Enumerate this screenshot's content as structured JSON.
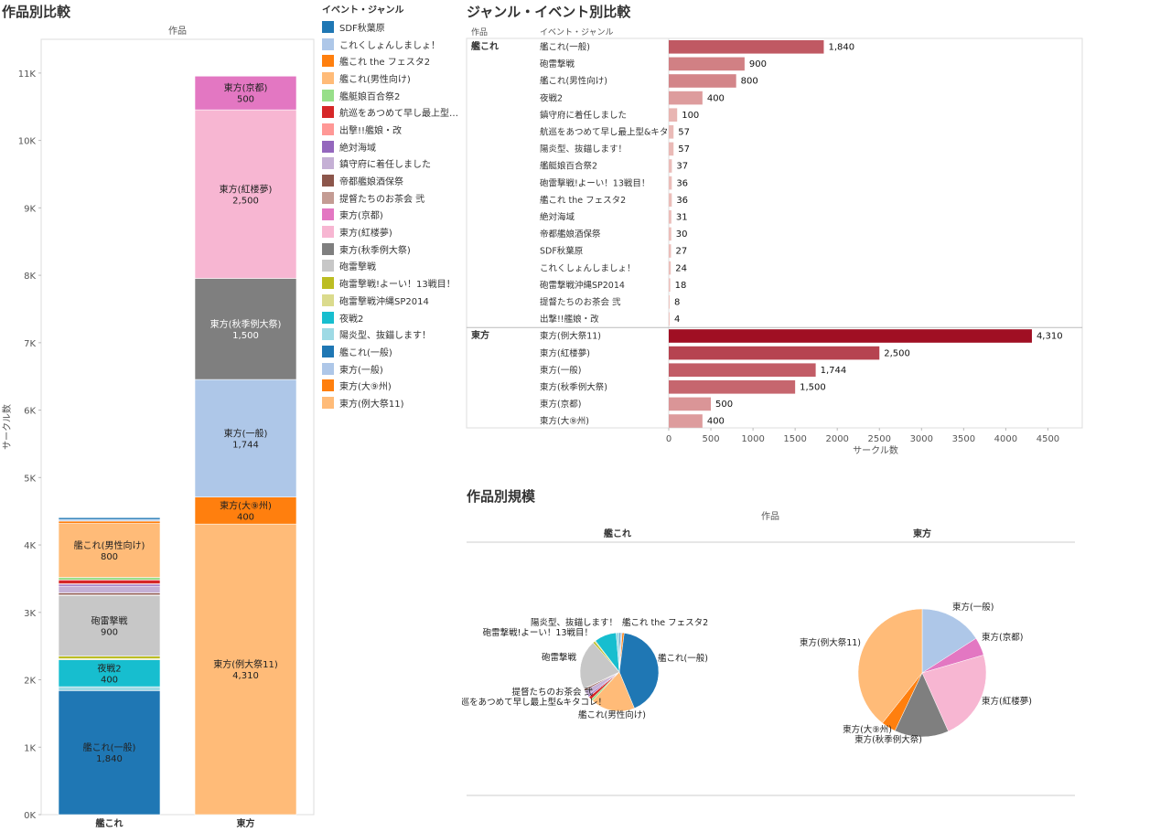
{
  "titles": {
    "stacked": "作品別比較",
    "bars": "ジャンル・イベント別比較",
    "pies": "作品別規模"
  },
  "legend": {
    "title": "イベント・ジャンル",
    "items": [
      {
        "label": "SDF秋葉原",
        "color": "#1f77b4"
      },
      {
        "label": "これくしょんしましょ！",
        "color": "#aec7e8"
      },
      {
        "label": "艦これ the フェスタ2",
        "color": "#ff7f0e"
      },
      {
        "label": "艦これ(男性向け)",
        "color": "#ffbb78"
      },
      {
        "label": "艦艇娘百合祭2",
        "color": "#98df8a"
      },
      {
        "label": "航巡をあつめて早し最上型&キ...",
        "color": "#d62728"
      },
      {
        "label": "出撃!!艦娘・改",
        "color": "#ff9896"
      },
      {
        "label": "絶対海域",
        "color": "#9467bd"
      },
      {
        "label": "鎮守府に着任しました",
        "color": "#c5b0d5"
      },
      {
        "label": "帝都艦娘酒保祭",
        "color": "#8c564b"
      },
      {
        "label": "提督たちのお茶会 弐",
        "color": "#c49c94"
      },
      {
        "label": "東方(京都)",
        "color": "#e377c2"
      },
      {
        "label": "東方(紅楼夢)",
        "color": "#f7b6d2"
      },
      {
        "label": "東方(秋季例大祭)",
        "color": "#7f7f7f"
      },
      {
        "label": "砲雷撃戦",
        "color": "#c7c7c7"
      },
      {
        "label": "砲雷撃戦!よーい！13戦目！",
        "color": "#bcbd22"
      },
      {
        "label": "砲雷撃戦沖縄SP2014",
        "color": "#dbdb8d"
      },
      {
        "label": "夜戦2",
        "color": "#17becf"
      },
      {
        "label": "陽炎型、抜錨します！",
        "color": "#9edae5"
      },
      {
        "label": "艦これ(一般)",
        "color": "#1f77b4"
      },
      {
        "label": "東方(一般)",
        "color": "#aec7e8"
      },
      {
        "label": "東方(大⑨州)",
        "color": "#ff7f0e"
      },
      {
        "label": "東方(例大祭11)",
        "color": "#ffbb78"
      }
    ]
  },
  "chart_data": [
    {
      "type": "bar",
      "stacked": true,
      "header": "作品",
      "ylabel": "サークル数",
      "ylim": [
        0,
        11500
      ],
      "yticks": [
        "0K",
        "1K",
        "2K",
        "3K",
        "4K",
        "5K",
        "6K",
        "7K",
        "8K",
        "9K",
        "10K",
        "11K"
      ],
      "categories": [
        "艦これ",
        "東方"
      ],
      "stacks": [
        [
          {
            "name": "艦これ(一般)",
            "value": 1840,
            "color": "#1f77b4",
            "label": "艦これ(一般)",
            "value_label": "1,840"
          },
          {
            "name": "陽炎型、抜錨します！",
            "value": 57,
            "color": "#9edae5"
          },
          {
            "name": "夜戦2",
            "value": 400,
            "color": "#17becf",
            "label": "夜戦2",
            "value_label": "400"
          },
          {
            "name": "砲雷撃戦沖縄SP2014",
            "value": 18,
            "color": "#dbdb8d"
          },
          {
            "name": "砲雷撃戦!よーい！13戦目！",
            "value": 36,
            "color": "#bcbd22"
          },
          {
            "name": "砲雷撃戦",
            "value": 900,
            "color": "#c7c7c7",
            "label": "砲雷撃戦",
            "value_label": "900"
          },
          {
            "name": "提督たちのお茶会 弐",
            "value": 8,
            "color": "#c49c94"
          },
          {
            "name": "帝都艦娘酒保祭",
            "value": 30,
            "color": "#8c564b"
          },
          {
            "name": "鎮守府に着任しました",
            "value": 100,
            "color": "#c5b0d5"
          },
          {
            "name": "絶対海域",
            "value": 31,
            "color": "#9467bd"
          },
          {
            "name": "出撃!!艦娘・改",
            "value": 4,
            "color": "#ff9896"
          },
          {
            "name": "航巡をあつめて早し最上型&キタコレ！",
            "value": 57,
            "color": "#d62728"
          },
          {
            "name": "艦艇娘百合祭2",
            "value": 37,
            "color": "#98df8a"
          },
          {
            "name": "艦これ(男性向け)",
            "value": 800,
            "color": "#ffbb78",
            "label": "艦これ(男性向け)",
            "value_label": "800"
          },
          {
            "name": "艦これ the フェスタ2",
            "value": 36,
            "color": "#ff7f0e"
          },
          {
            "name": "これくしょんしましょ！",
            "value": 24,
            "color": "#aec7e8"
          },
          {
            "name": "SDF秋葉原",
            "value": 27,
            "color": "#1f77b4"
          }
        ],
        [
          {
            "name": "東方(例大祭11)",
            "value": 4310,
            "color": "#ffbb78",
            "label": "東方(例大祭11)",
            "value_label": "4,310"
          },
          {
            "name": "東方(大⑨州)",
            "value": 400,
            "color": "#ff7f0e",
            "label": "東方(大⑨州)",
            "value_label": "400"
          },
          {
            "name": "東方(一般)",
            "value": 1744,
            "color": "#aec7e8",
            "label": "東方(一般)",
            "value_label": "1,744"
          },
          {
            "name": "東方(秋季例大祭)",
            "value": 1500,
            "color": "#7f7f7f",
            "label": "東方(秋季例大祭)",
            "value_label": "1,500",
            "light_text": true
          },
          {
            "name": "東方(紅楼夢)",
            "value": 2500,
            "color": "#f7b6d2",
            "label": "東方(紅楼夢)",
            "value_label": "2,500"
          },
          {
            "name": "東方(京都)",
            "value": 500,
            "color": "#e377c2",
            "label": "東方(京都)",
            "value_label": "500"
          }
        ]
      ]
    },
    {
      "type": "bar",
      "orientation": "horizontal",
      "col_headers": [
        "作品",
        "イベント・ジャンル"
      ],
      "xlabel": "サークル数",
      "xlim": [
        0,
        4700
      ],
      "xticks": [
        0,
        500,
        1000,
        1500,
        2000,
        2500,
        3000,
        3500,
        4000,
        4500
      ],
      "groups": [
        {
          "name": "艦これ",
          "rows": [
            {
              "label": "艦これ(一般)",
              "value": 1840,
              "value_label": "1,840"
            },
            {
              "label": "砲雷撃戦",
              "value": 900,
              "value_label": "900"
            },
            {
              "label": "艦これ(男性向け)",
              "value": 800,
              "value_label": "800"
            },
            {
              "label": "夜戦2",
              "value": 400,
              "value_label": "400"
            },
            {
              "label": "鎮守府に着任しました",
              "value": 100,
              "value_label": "100"
            },
            {
              "label": "航巡をあつめて早し最上型&キタ..",
              "value": 57,
              "value_label": "57"
            },
            {
              "label": "陽炎型、抜錨します！",
              "value": 57,
              "value_label": "57"
            },
            {
              "label": "艦艇娘百合祭2",
              "value": 37,
              "value_label": "37"
            },
            {
              "label": "砲雷撃戦!よーい！13戦目！",
              "value": 36,
              "value_label": "36"
            },
            {
              "label": "艦これ the フェスタ2",
              "value": 36,
              "value_label": "36"
            },
            {
              "label": "絶対海域",
              "value": 31,
              "value_label": "31"
            },
            {
              "label": "帝都艦娘酒保祭",
              "value": 30,
              "value_label": "30"
            },
            {
              "label": "SDF秋葉原",
              "value": 27,
              "value_label": "27"
            },
            {
              "label": "これくしょんしましょ！",
              "value": 24,
              "value_label": "24"
            },
            {
              "label": "砲雷撃戦沖縄SP2014",
              "value": 18,
              "value_label": "18"
            },
            {
              "label": "提督たちのお茶会 弐",
              "value": 8,
              "value_label": "8"
            },
            {
              "label": "出撃!!艦娘・改",
              "value": 4,
              "value_label": "4"
            }
          ]
        },
        {
          "name": "東方",
          "rows": [
            {
              "label": "東方(例大祭11)",
              "value": 4310,
              "value_label": "4,310"
            },
            {
              "label": "東方(紅楼夢)",
              "value": 2500,
              "value_label": "2,500"
            },
            {
              "label": "東方(一般)",
              "value": 1744,
              "value_label": "1,744"
            },
            {
              "label": "東方(秋季例大祭)",
              "value": 1500,
              "value_label": "1,500"
            },
            {
              "label": "東方(京都)",
              "value": 500,
              "value_label": "500"
            },
            {
              "label": "東方(大⑨州)",
              "value": 400,
              "value_label": "400"
            }
          ]
        }
      ]
    },
    {
      "type": "pie",
      "header": "作品",
      "pies": [
        {
          "name": "艦これ",
          "slices": [
            {
              "name": "SDF秋葉原",
              "value": 27,
              "color": "#1f77b4"
            },
            {
              "name": "これくしょんしましょ！",
              "value": 24,
              "color": "#aec7e8"
            },
            {
              "name": "艦これ the フェスタ2",
              "value": 36,
              "color": "#ff7f0e"
            },
            {
              "name": "艦これ(一般)",
              "value": 1840,
              "color": "#1f77b4"
            },
            {
              "name": "艦これ(男性向け)",
              "value": 800,
              "color": "#ffbb78"
            },
            {
              "name": "艦艇娘百合祭2",
              "value": 37,
              "color": "#98df8a"
            },
            {
              "name": "航巡をあつめて早し最上型&キタコレ！",
              "value": 57,
              "color": "#d62728"
            },
            {
              "name": "出撃!!艦娘・改",
              "value": 4,
              "color": "#ff9896"
            },
            {
              "name": "絶対海域",
              "value": 31,
              "color": "#9467bd"
            },
            {
              "name": "鎮守府に着任しました",
              "value": 100,
              "color": "#c5b0d5"
            },
            {
              "name": "帝都艦娘酒保祭",
              "value": 30,
              "color": "#8c564b"
            },
            {
              "name": "提督たちのお茶会 弐",
              "value": 8,
              "color": "#c49c94"
            },
            {
              "name": "砲雷撃戦",
              "value": 900,
              "color": "#c7c7c7"
            },
            {
              "name": "砲雷撃戦!よーい！13戦目！",
              "value": 36,
              "color": "#bcbd22"
            },
            {
              "name": "砲雷撃戦沖縄SP2014",
              "value": 18,
              "color": "#dbdb8d"
            },
            {
              "name": "夜戦2",
              "value": 400,
              "color": "#17becf"
            },
            {
              "name": "陽炎型、抜錨します！",
              "value": 57,
              "color": "#9edae5"
            }
          ],
          "labels": [
            "艦これ the フェスタ2",
            "陽炎型、抜錨します！",
            "砲雷撃戦!よーい！13戦目！",
            "艦これ(一般)",
            "砲雷撃戦",
            "提督たちのお茶会 弐",
            "航巡をあつめて早し最上型&キタコレ！",
            "艦これ(男性向け)"
          ]
        },
        {
          "name": "東方",
          "slices": [
            {
              "name": "東方(一般)",
              "value": 1744,
              "color": "#aec7e8"
            },
            {
              "name": "東方(京都)",
              "value": 500,
              "color": "#e377c2"
            },
            {
              "name": "東方(紅楼夢)",
              "value": 2500,
              "color": "#f7b6d2"
            },
            {
              "name": "東方(秋季例大祭)",
              "value": 1500,
              "color": "#7f7f7f"
            },
            {
              "name": "東方(大⑨州)",
              "value": 400,
              "color": "#ff7f0e"
            },
            {
              "name": "東方(例大祭11)",
              "value": 4310,
              "color": "#ffbb78"
            }
          ],
          "labels": [
            "東方(一般)",
            "東方(京都)",
            "東方(紅楼夢)",
            "東方(大⑨州)",
            "東方(秋季例大祭)",
            "東方(例大祭11)"
          ]
        }
      ]
    }
  ]
}
